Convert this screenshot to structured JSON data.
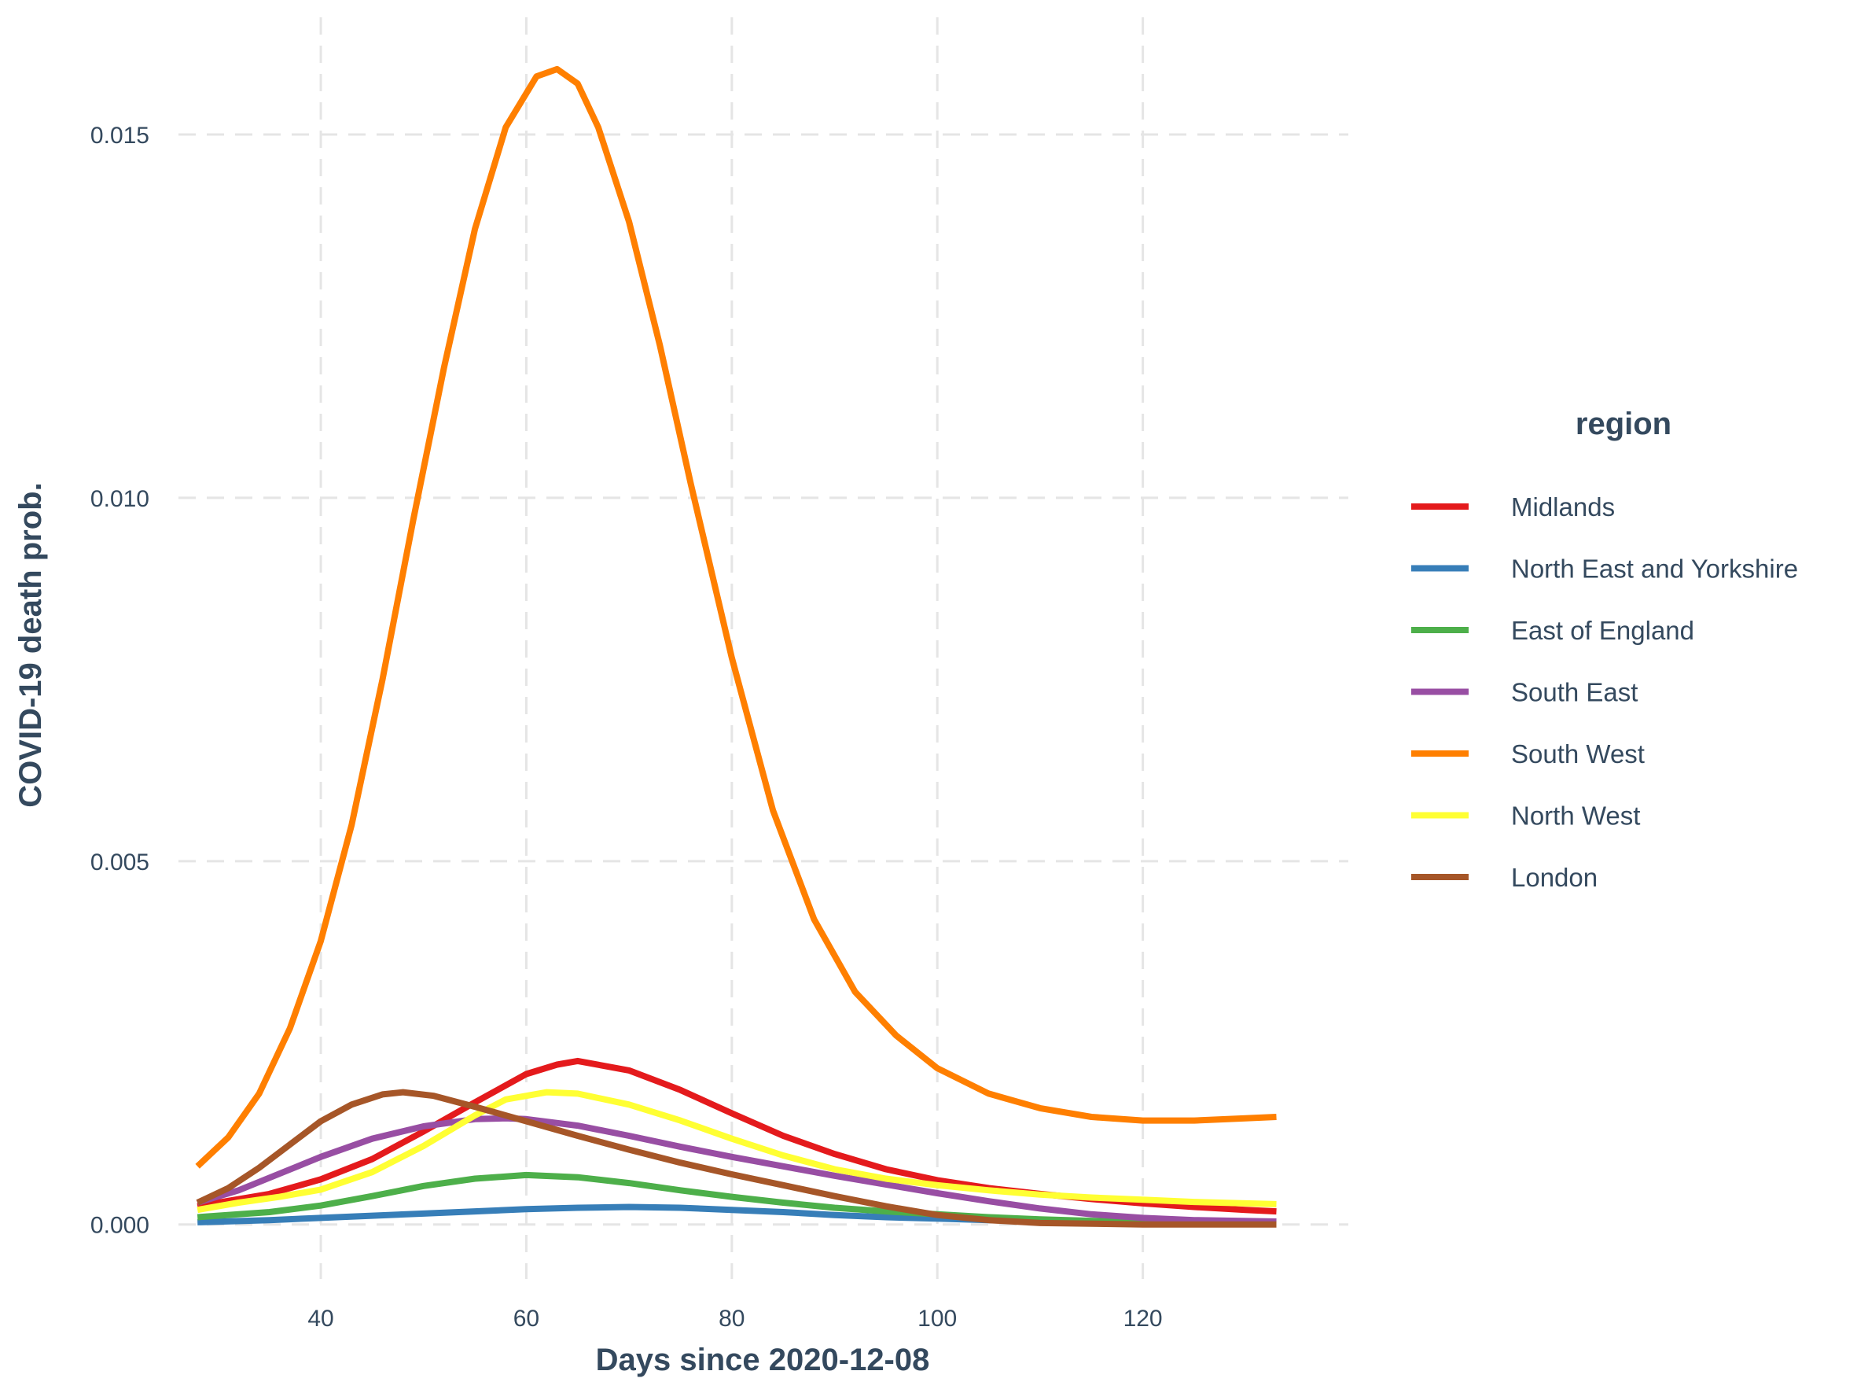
{
  "chart_data": {
    "type": "line",
    "title": "",
    "xlabel": "Days since 2020-12-08",
    "ylabel": "COVID-19 death prob.",
    "xlim": [
      25,
      140
    ],
    "ylim": [
      -0.00075,
      0.0167
    ],
    "x_ticks": [
      40,
      60,
      80,
      100,
      120
    ],
    "x_tick_labels": [
      "40",
      "60",
      "80",
      "100",
      "120"
    ],
    "y_ticks": [
      0.0,
      0.005,
      0.01,
      0.015
    ],
    "y_tick_labels": [
      "0.000",
      "0.005",
      "0.010",
      "0.015"
    ],
    "grid": true,
    "legend": {
      "title": "region",
      "placement": "right"
    },
    "series": [
      {
        "name": "Midlands",
        "color": "#e41a1c",
        "points": [
          [
            28,
            0.00025
          ],
          [
            30,
            0.0003
          ],
          [
            35,
            0.00042
          ],
          [
            40,
            0.00062
          ],
          [
            45,
            0.0009
          ],
          [
            50,
            0.00128
          ],
          [
            55,
            0.00168
          ],
          [
            60,
            0.00207
          ],
          [
            63,
            0.0022
          ],
          [
            65,
            0.00225
          ],
          [
            70,
            0.00212
          ],
          [
            75,
            0.00185
          ],
          [
            80,
            0.00153
          ],
          [
            85,
            0.00122
          ],
          [
            90,
            0.00097
          ],
          [
            95,
            0.00076
          ],
          [
            100,
            0.00061
          ],
          [
            105,
            0.0005
          ],
          [
            110,
            0.00042
          ],
          [
            115,
            0.00035
          ],
          [
            120,
            0.00029
          ],
          [
            125,
            0.00024
          ],
          [
            130,
            0.0002
          ],
          [
            133,
            0.00018
          ]
        ]
      },
      {
        "name": "North East and Yorkshire",
        "color": "#377eb8",
        "points": [
          [
            28,
            3e-05
          ],
          [
            35,
            6e-05
          ],
          [
            40,
            9e-05
          ],
          [
            45,
            0.00012
          ],
          [
            50,
            0.00015
          ],
          [
            55,
            0.00018
          ],
          [
            60,
            0.00021
          ],
          [
            65,
            0.00023
          ],
          [
            70,
            0.00024
          ],
          [
            75,
            0.00023
          ],
          [
            80,
            0.0002
          ],
          [
            85,
            0.00017
          ],
          [
            90,
            0.00013
          ],
          [
            95,
            0.0001
          ],
          [
            100,
            8e-05
          ],
          [
            105,
            6e-05
          ],
          [
            110,
            5e-05
          ],
          [
            115,
            4e-05
          ],
          [
            120,
            4e-05
          ],
          [
            125,
            3e-05
          ],
          [
            133,
            3e-05
          ]
        ]
      },
      {
        "name": "East of England",
        "color": "#4daf4a",
        "points": [
          [
            28,
            0.0001
          ],
          [
            35,
            0.00017
          ],
          [
            40,
            0.00026
          ],
          [
            45,
            0.00039
          ],
          [
            50,
            0.00053
          ],
          [
            55,
            0.00063
          ],
          [
            60,
            0.00068
          ],
          [
            65,
            0.00065
          ],
          [
            70,
            0.00057
          ],
          [
            75,
            0.00047
          ],
          [
            80,
            0.00038
          ],
          [
            85,
            0.0003
          ],
          [
            90,
            0.00023
          ],
          [
            95,
            0.00018
          ],
          [
            100,
            0.00014
          ],
          [
            105,
            0.0001
          ],
          [
            110,
            7e-05
          ],
          [
            115,
            5e-05
          ],
          [
            120,
            3e-05
          ],
          [
            125,
            2e-05
          ],
          [
            133,
            1e-05
          ]
        ]
      },
      {
        "name": "South East",
        "color": "#984ea3",
        "points": [
          [
            28,
            0.0003
          ],
          [
            32,
            0.00047
          ],
          [
            36,
            0.0007
          ],
          [
            40,
            0.00093
          ],
          [
            45,
            0.00118
          ],
          [
            50,
            0.00135
          ],
          [
            55,
            0.00145
          ],
          [
            58,
            0.00146
          ],
          [
            60,
            0.00145
          ],
          [
            65,
            0.00136
          ],
          [
            70,
            0.00122
          ],
          [
            75,
            0.00107
          ],
          [
            80,
            0.00093
          ],
          [
            85,
            0.0008
          ],
          [
            90,
            0.00067
          ],
          [
            95,
            0.00055
          ],
          [
            100,
            0.00043
          ],
          [
            105,
            0.00032
          ],
          [
            110,
            0.00022
          ],
          [
            115,
            0.00014
          ],
          [
            120,
            9e-05
          ],
          [
            125,
            6e-05
          ],
          [
            133,
            4e-05
          ]
        ]
      },
      {
        "name": "South West",
        "color": "#ff7f00",
        "points": [
          [
            28,
            0.0008
          ],
          [
            31,
            0.0012
          ],
          [
            34,
            0.0018
          ],
          [
            37,
            0.0027
          ],
          [
            40,
            0.0039
          ],
          [
            43,
            0.0055
          ],
          [
            46,
            0.0075
          ],
          [
            49,
            0.0097
          ],
          [
            52,
            0.0118
          ],
          [
            55,
            0.0137
          ],
          [
            58,
            0.0151
          ],
          [
            61,
            0.0158
          ],
          [
            63,
            0.0159
          ],
          [
            65,
            0.0157
          ],
          [
            67,
            0.0151
          ],
          [
            70,
            0.0138
          ],
          [
            73,
            0.0121
          ],
          [
            76,
            0.0102
          ],
          [
            80,
            0.0078
          ],
          [
            84,
            0.0057
          ],
          [
            88,
            0.0042
          ],
          [
            92,
            0.0032
          ],
          [
            96,
            0.0026
          ],
          [
            100,
            0.00215
          ],
          [
            105,
            0.0018
          ],
          [
            110,
            0.0016
          ],
          [
            115,
            0.00148
          ],
          [
            120,
            0.00143
          ],
          [
            125,
            0.00143
          ],
          [
            130,
            0.00146
          ],
          [
            133,
            0.00148
          ]
        ]
      },
      {
        "name": "North West",
        "color": "#ffff33",
        "points": [
          [
            28,
            0.0002
          ],
          [
            32,
            0.0003
          ],
          [
            36,
            0.00038
          ],
          [
            40,
            0.00048
          ],
          [
            45,
            0.00072
          ],
          [
            50,
            0.00108
          ],
          [
            55,
            0.0015
          ],
          [
            58,
            0.00172
          ],
          [
            62,
            0.00182
          ],
          [
            65,
            0.0018
          ],
          [
            70,
            0.00165
          ],
          [
            75,
            0.00143
          ],
          [
            80,
            0.00118
          ],
          [
            85,
            0.00095
          ],
          [
            90,
            0.00076
          ],
          [
            95,
            0.00063
          ],
          [
            100,
            0.00054
          ],
          [
            105,
            0.00047
          ],
          [
            110,
            0.00041
          ],
          [
            115,
            0.00037
          ],
          [
            120,
            0.00034
          ],
          [
            125,
            0.00031
          ],
          [
            130,
            0.00029
          ],
          [
            133,
            0.00028
          ]
        ]
      },
      {
        "name": "London",
        "color": "#a65628",
        "points": [
          [
            28,
            0.0003
          ],
          [
            31,
            0.0005
          ],
          [
            34,
            0.00078
          ],
          [
            37,
            0.0011
          ],
          [
            40,
            0.00142
          ],
          [
            43,
            0.00165
          ],
          [
            46,
            0.00179
          ],
          [
            48,
            0.00182
          ],
          [
            51,
            0.00177
          ],
          [
            55,
            0.00162
          ],
          [
            60,
            0.00142
          ],
          [
            65,
            0.00122
          ],
          [
            70,
            0.00103
          ],
          [
            75,
            0.00085
          ],
          [
            80,
            0.00069
          ],
          [
            85,
            0.00054
          ],
          [
            90,
            0.00039
          ],
          [
            95,
            0.00025
          ],
          [
            100,
            0.00013
          ],
          [
            105,
            6e-05
          ],
          [
            110,
            2e-05
          ],
          [
            115,
            1e-05
          ],
          [
            120,
            0.0
          ],
          [
            133,
            0.0
          ]
        ]
      }
    ]
  }
}
